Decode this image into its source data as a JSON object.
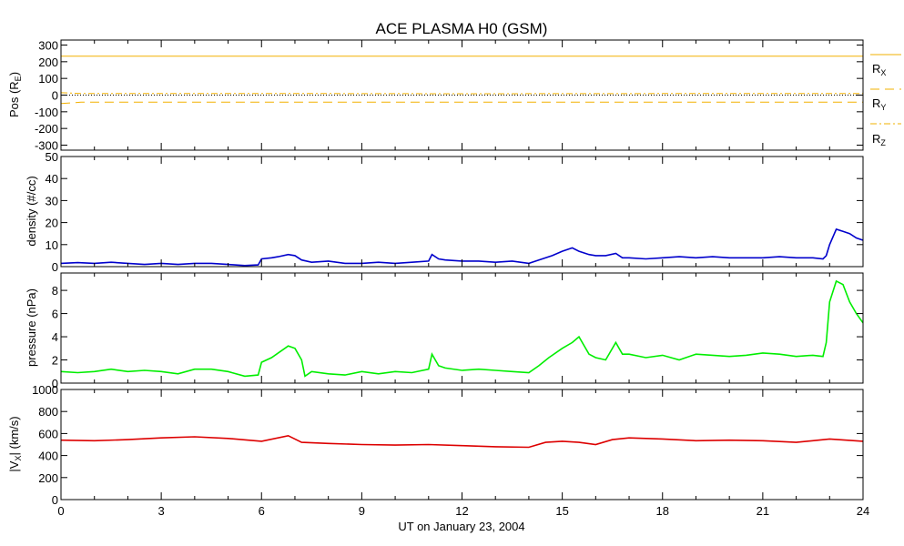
{
  "title": "ACE PLASMA H0 (GSM)",
  "xlabel": "UT on January 23, 2004",
  "x_ticks": [
    "0",
    "3",
    "6",
    "9",
    "12",
    "15",
    "18",
    "21",
    "24"
  ],
  "colors": {
    "position": "#f2b000",
    "density": "#0000cc",
    "pressure": "#00ee00",
    "velocity": "#dd0000",
    "zero_line": "#000000"
  },
  "legend": {
    "rx": "R",
    "rx_sub": "X",
    "ry": "R",
    "ry_sub": "Y",
    "rz": "R",
    "rz_sub": "Z"
  },
  "panels": {
    "pos": {
      "ylabel": "Pos (R",
      "ylabel_sub": "E",
      "ylabel_end": ")",
      "ticks": [
        "300",
        "200",
        "100",
        "0",
        "-100",
        "-200",
        "-300"
      ]
    },
    "density": {
      "ylabel": "density (#/cc)",
      "ticks": [
        "50",
        "40",
        "30",
        "20",
        "10",
        "0"
      ]
    },
    "pressure": {
      "ylabel": "pressure (nPa)",
      "ticks": [
        "8",
        "6",
        "4",
        "2",
        "0"
      ]
    },
    "velocity": {
      "ylabel": "|V",
      "ylabel_sub": "X",
      "ylabel_end": "| (km/s)",
      "ticks": [
        "1000",
        "800",
        "600",
        "400",
        "200",
        "0"
      ]
    }
  },
  "chart_data": [
    {
      "type": "line",
      "panel": "pos",
      "ylim": [
        -330,
        330
      ],
      "x_range": [
        0,
        24
      ],
      "series": [
        {
          "name": "RX",
          "style": "solid",
          "x": [
            0,
            24
          ],
          "values": [
            233,
            233
          ]
        },
        {
          "name": "RY",
          "style": "dashed",
          "x": [
            0,
            0.3,
            0.6,
            24
          ],
          "values": [
            -50,
            -47,
            -42,
            -42
          ]
        },
        {
          "name": "RZ",
          "style": "dashdot",
          "x": [
            0,
            0.3,
            0.6,
            6,
            12,
            18,
            24
          ],
          "values": [
            14,
            12,
            9,
            10,
            8,
            9,
            10
          ]
        }
      ]
    },
    {
      "type": "line",
      "panel": "density",
      "ylim": [
        0,
        50
      ],
      "x_range": [
        0,
        24
      ],
      "series": [
        {
          "name": "density",
          "x": [
            0,
            0.5,
            1,
            1.5,
            2,
            2.5,
            3,
            3.5,
            4,
            4.5,
            5,
            5.5,
            5.9,
            6,
            6.3,
            6.5,
            6.8,
            7,
            7.2,
            7.5,
            8,
            8.5,
            9,
            9.5,
            10,
            10.5,
            11,
            11.1,
            11.3,
            11.5,
            12,
            12.5,
            13,
            13.5,
            14,
            14.3,
            14.7,
            15,
            15.3,
            15.5,
            15.8,
            16,
            16.3,
            16.6,
            16.8,
            17,
            17.5,
            18,
            18.5,
            19,
            19.5,
            20,
            20.5,
            21,
            21.5,
            22,
            22.5,
            22.8,
            22.9,
            23,
            23.2,
            23.4,
            23.6,
            23.8,
            24
          ],
          "values": [
            1.5,
            1.8,
            1.5,
            2,
            1.5,
            1,
            1.5,
            1,
            1.5,
            1.5,
            1,
            0.5,
            0.8,
            3.5,
            4,
            4.5,
            5.5,
            5,
            3,
            2,
            2.5,
            1.5,
            1.5,
            2,
            1.5,
            2,
            2.5,
            5.5,
            3.5,
            3,
            2.5,
            2.5,
            2,
            2.5,
            1.5,
            3,
            5,
            7,
            8.5,
            7,
            5.5,
            5,
            5,
            6,
            4,
            4,
            3.5,
            4,
            4.5,
            4,
            4.5,
            4,
            4,
            4,
            4.5,
            4,
            4,
            3.5,
            5,
            10,
            17,
            16,
            15,
            13,
            12
          ]
        }
      ]
    },
    {
      "type": "line",
      "panel": "pressure",
      "ylim": [
        0,
        9.5
      ],
      "x_range": [
        0,
        24
      ],
      "series": [
        {
          "name": "pressure",
          "x": [
            0,
            0.5,
            1,
            1.5,
            2,
            2.5,
            3,
            3.5,
            4,
            4.5,
            5,
            5.5,
            5.9,
            6,
            6.3,
            6.6,
            6.8,
            7,
            7.2,
            7.3,
            7.5,
            8,
            8.5,
            9,
            9.5,
            10,
            10.5,
            11,
            11.1,
            11.3,
            11.5,
            12,
            12.5,
            13,
            13.5,
            14,
            14.3,
            14.6,
            15,
            15.3,
            15.5,
            15.8,
            16,
            16.3,
            16.6,
            16.8,
            17,
            17.5,
            18,
            18.5,
            19,
            19.5,
            20,
            20.5,
            21,
            21.5,
            22,
            22.5,
            22.8,
            22.9,
            23,
            23.2,
            23.4,
            23.6,
            23.8,
            24
          ],
          "values": [
            1,
            0.9,
            1,
            1.2,
            1,
            1.1,
            1,
            0.8,
            1.2,
            1.2,
            1,
            0.6,
            0.7,
            1.8,
            2.2,
            2.8,
            3.2,
            3,
            2,
            0.6,
            1,
            0.8,
            0.7,
            1,
            0.8,
            1,
            0.9,
            1.2,
            2.5,
            1.5,
            1.3,
            1.1,
            1.2,
            1.1,
            1,
            0.9,
            1.5,
            2.2,
            3,
            3.5,
            4,
            2.5,
            2.2,
            2,
            3.5,
            2.5,
            2.5,
            2.2,
            2.4,
            2,
            2.5,
            2.4,
            2.3,
            2.4,
            2.6,
            2.5,
            2.3,
            2.4,
            2.3,
            3.5,
            7,
            8.8,
            8.5,
            7,
            6,
            5.2
          ]
        }
      ]
    },
    {
      "type": "line",
      "panel": "velocity",
      "ylim": [
        0,
        1000
      ],
      "x_range": [
        0,
        24
      ],
      "series": [
        {
          "name": "|VX|",
          "x": [
            0,
            1,
            2,
            3,
            4,
            5,
            6,
            6.8,
            7.2,
            8,
            9,
            10,
            11,
            12,
            13,
            14,
            14.5,
            15,
            15.5,
            16,
            16.5,
            17,
            18,
            19,
            20,
            21,
            22,
            23,
            24
          ],
          "values": [
            540,
            535,
            545,
            560,
            570,
            555,
            530,
            580,
            520,
            510,
            500,
            495,
            500,
            490,
            480,
            475,
            520,
            530,
            520,
            500,
            545,
            560,
            550,
            535,
            540,
            535,
            520,
            550,
            530
          ]
        }
      ]
    }
  ]
}
